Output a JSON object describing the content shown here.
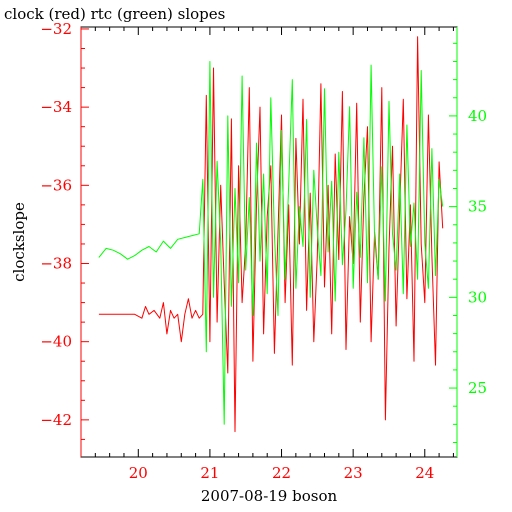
{
  "chart_data": {
    "type": "line",
    "title": "clock (red) rtc (green) slopes",
    "xlabel": "2007-08-19 boson",
    "ylabel": "clockslope",
    "xlim": [
      19.2,
      24.45
    ],
    "ylim_left": [
      -42.95,
      -31.95
    ],
    "ylim_right": [
      21.2,
      44.9
    ],
    "x_ticks": [
      "20",
      "21",
      "22",
      "23",
      "24"
    ],
    "y_left_ticks": [
      "-32",
      "-34",
      "-36",
      "-38",
      "-40",
      "-42"
    ],
    "y_right_ticks": [
      "25",
      "30",
      "35",
      "40"
    ],
    "grid": false,
    "series": [
      {
        "name": "clock",
        "axis": "left",
        "color": "#ff0000",
        "x": [
          19.45,
          19.6,
          19.8,
          19.95,
          20.05,
          20.1,
          20.15,
          20.22,
          20.3,
          20.35,
          20.4,
          20.45,
          20.5,
          20.55,
          20.6,
          20.65,
          20.7,
          20.75,
          20.8,
          20.85,
          20.9,
          20.95,
          21.0,
          21.05,
          21.1,
          21.15,
          21.2,
          21.25,
          21.3,
          21.35,
          21.4,
          21.45,
          21.5,
          21.55,
          21.6,
          21.65,
          21.7,
          21.75,
          21.8,
          21.85,
          21.9,
          21.95,
          22.0,
          22.05,
          22.1,
          22.15,
          22.2,
          22.25,
          22.3,
          22.35,
          22.4,
          22.45,
          22.5,
          22.55,
          22.6,
          22.65,
          22.7,
          22.75,
          22.8,
          22.85,
          22.9,
          22.95,
          23.0,
          23.05,
          23.1,
          23.15,
          23.2,
          23.25,
          23.3,
          23.35,
          23.4,
          23.45,
          23.5,
          23.55,
          23.6,
          23.65,
          23.7,
          23.75,
          23.8,
          23.85,
          23.9,
          23.95,
          24.0,
          24.05,
          24.1,
          24.15,
          24.2,
          24.25
        ],
        "y": [
          -39.3,
          -39.3,
          -39.3,
          -39.3,
          -39.4,
          -39.1,
          -39.3,
          -39.2,
          -39.4,
          -39.0,
          -39.8,
          -39.2,
          -39.4,
          -39.3,
          -40.0,
          -39.3,
          -38.9,
          -39.4,
          -39.2,
          -39.4,
          -39.3,
          -33.7,
          -40.0,
          -33.0,
          -39.5,
          -36.0,
          -38.5,
          -40.8,
          -34.3,
          -42.3,
          -35.5,
          -39.0,
          -37.5,
          -33.5,
          -40.5,
          -36.5,
          -34.0,
          -39.8,
          -36.8,
          -35.5,
          -40.3,
          -37.2,
          -34.2,
          -39.0,
          -36.5,
          -40.6,
          -34.8,
          -37.5,
          -33.8,
          -39.2,
          -36.2,
          -40.0,
          -37.8,
          -33.4,
          -38.6,
          -36.0,
          -39.8,
          -35.2,
          -37.9,
          -33.6,
          -40.2,
          -36.8,
          -38.0,
          -33.9,
          -39.5,
          -36.3,
          -34.5,
          -40.0,
          -37.2,
          -38.4,
          -33.5,
          -42.0,
          -37.6,
          -35.0,
          -39.6,
          -36.6,
          -33.8,
          -38.9,
          -36.5,
          -40.5,
          -32.2,
          -37.5,
          -39.0,
          -34.2,
          -37.8,
          -40.6,
          -35.4,
          -37.1
        ]
      },
      {
        "name": "rtc",
        "axis": "right",
        "color": "#00ff00",
        "x": [
          19.45,
          19.55,
          19.65,
          19.75,
          19.85,
          19.95,
          20.05,
          20.15,
          20.25,
          20.35,
          20.45,
          20.55,
          20.65,
          20.75,
          20.85,
          20.9,
          20.95,
          21.0,
          21.05,
          21.1,
          21.15,
          21.2,
          21.25,
          21.3,
          21.35,
          21.4,
          21.45,
          21.5,
          21.55,
          21.6,
          21.65,
          21.7,
          21.75,
          21.8,
          21.85,
          21.9,
          21.95,
          22.0,
          22.05,
          22.1,
          22.15,
          22.2,
          22.25,
          22.3,
          22.35,
          22.4,
          22.45,
          22.5,
          22.55,
          22.6,
          22.65,
          22.7,
          22.75,
          22.8,
          22.85,
          22.9,
          22.95,
          23.0,
          23.05,
          23.1,
          23.15,
          23.2,
          23.25,
          23.3,
          23.35,
          23.4,
          23.45,
          23.5,
          23.55,
          23.6,
          23.65,
          23.7,
          23.75,
          23.8,
          23.85,
          23.9,
          23.95,
          24.0,
          24.05,
          24.1,
          24.15,
          24.2,
          24.25
        ],
        "y": [
          32.2,
          32.7,
          32.6,
          32.4,
          32.1,
          32.3,
          32.6,
          32.8,
          32.5,
          33.1,
          32.7,
          33.2,
          33.3,
          33.4,
          33.5,
          36.5,
          27.0,
          43.0,
          30.0,
          37.5,
          33.0,
          23.0,
          40.0,
          29.5,
          36.0,
          30.8,
          42.2,
          31.5,
          35.5,
          29.0,
          38.5,
          32.0,
          36.8,
          30.2,
          41.0,
          33.5,
          29.0,
          39.2,
          31.0,
          36.2,
          42.0,
          30.5,
          35.0,
          32.8,
          39.8,
          30.0,
          37.0,
          33.8,
          31.2,
          41.5,
          32.5,
          36.4,
          29.8,
          38.0,
          31.8,
          34.8,
          40.5,
          30.5,
          35.8,
          32.2,
          38.8,
          30.8,
          42.8,
          33.2,
          31.0,
          37.2,
          29.8,
          40.8,
          33.5,
          31.5,
          36.8,
          30.2,
          39.5,
          32.8,
          35.2,
          31.0,
          42.5,
          33.0,
          30.5,
          38.2,
          31.2,
          36.5,
          35.0
        ]
      }
    ]
  }
}
